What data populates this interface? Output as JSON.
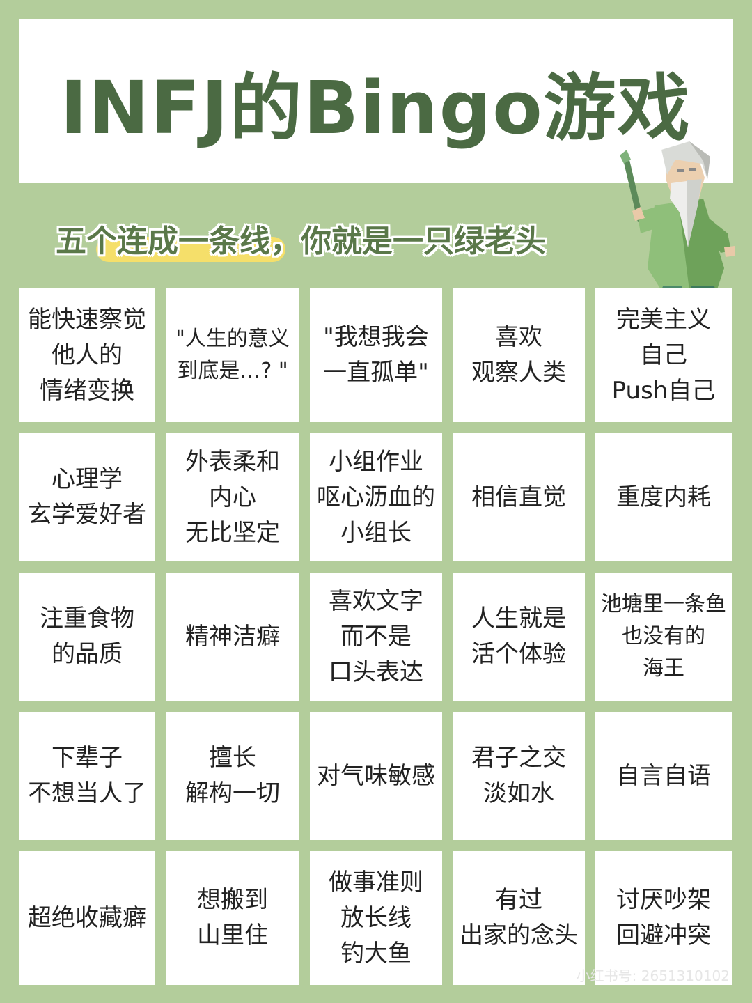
{
  "title": "INFJ的Bingo游戏",
  "subtitle": "五个连成一条线，你就是一只绿老头",
  "cells": [
    "能快速察觉\n他人的\n情绪变换",
    "\"人生的意义\n到底是…? \"",
    "\"我想我会\n一直孤单\"",
    "喜欢\n观察人类",
    "完美主义\n自己\nPush自己",
    "心理学\n玄学爱好者",
    "外表柔和\n内心\n无比坚定",
    "小组作业\n呕心沥血的\n小组长",
    "相信直觉",
    "重度内耗",
    "注重食物\n的品质",
    "精神洁癖",
    "喜欢文字\n而不是\n口头表达",
    "人生就是\n活个体验",
    "池塘里一条鱼\n也没有的\n海王",
    "下辈子\n不想当人了",
    "擅长\n解构一切",
    "对气味敏感",
    "君子之交\n淡如水",
    "自言自语",
    "超绝收藏癖",
    "想搬到\n山里住",
    "做事准则\n放长线\n钓大鱼",
    "有过\n出家的念头",
    "讨厌吵架\n回避冲突"
  ],
  "watermark": "小红书号: 2651310102",
  "colors": {
    "background": "#b3cd9b",
    "title": "#4b6a43",
    "highlight": "#f5df6a",
    "cell": "#ffffff"
  }
}
